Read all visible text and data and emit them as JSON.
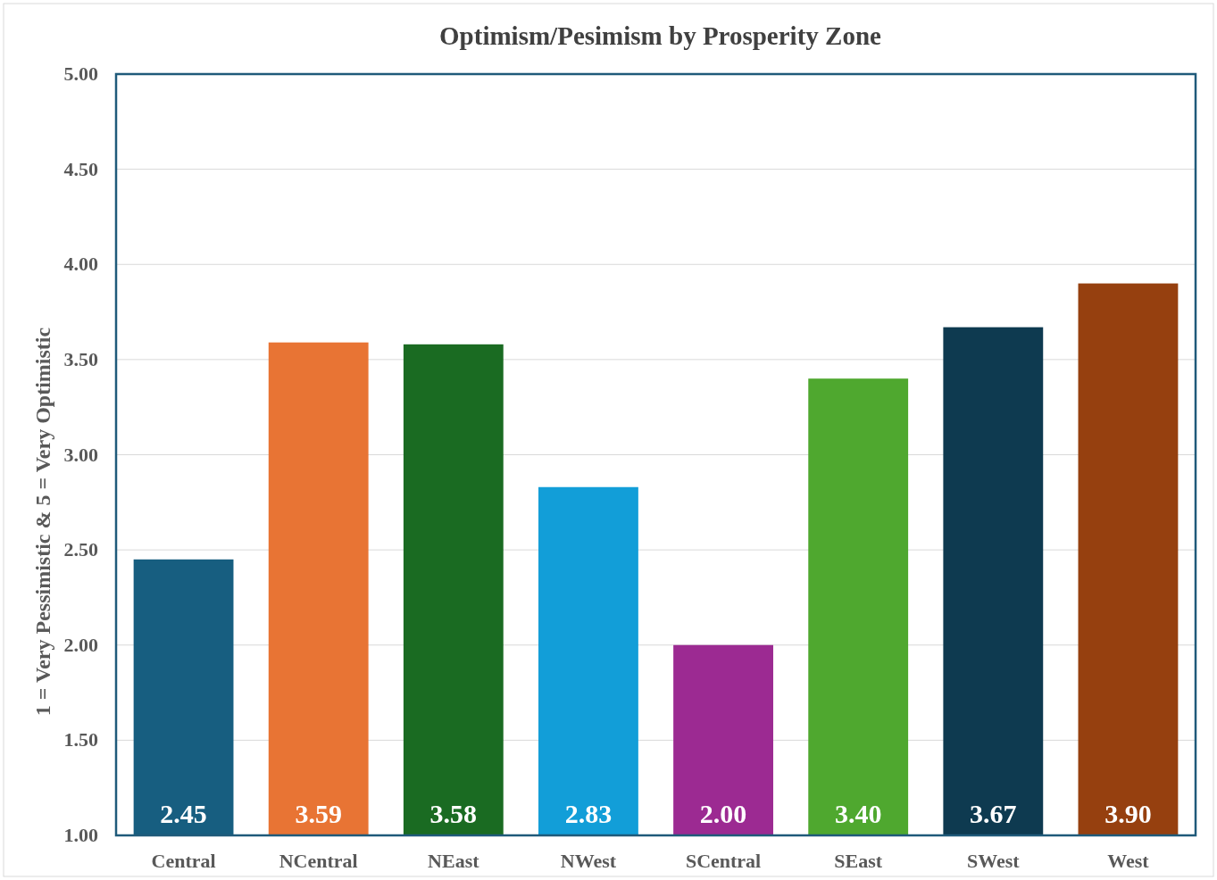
{
  "chart_data": {
    "type": "bar",
    "title": "Optimism/Pesimism by Prosperity Zone",
    "ylabel": "1 = Very Pessimistic & 5 = Very Optimistic",
    "categories": [
      "Central",
      "NCentral",
      "NEast",
      "NWest",
      "SCentral",
      "SEast",
      "SWest",
      "West"
    ],
    "values": [
      2.45,
      3.59,
      3.58,
      2.83,
      2.0,
      3.4,
      3.67,
      3.9
    ],
    "colors": [
      "#175e80",
      "#e87434",
      "#1a6b22",
      "#129ed8",
      "#9c2a92",
      "#4fa82f",
      "#0e3a50",
      "#96400f"
    ],
    "ylim": [
      1,
      5
    ],
    "yticks": [
      {
        "value": 1,
        "label": "1.00"
      },
      {
        "value": 1.5,
        "label": "1.50"
      },
      {
        "value": 2,
        "label": "2.00"
      },
      {
        "value": 2.5,
        "label": "2.50"
      },
      {
        "value": 3,
        "label": "3.00"
      },
      {
        "value": 3.5,
        "label": "3.50"
      },
      {
        "value": 4,
        "label": "4.00"
      },
      {
        "value": 4.5,
        "label": "4.50"
      },
      {
        "value": 5,
        "label": "5.00"
      }
    ],
    "value_labels": [
      "2.45",
      "3.59",
      "3.58",
      "2.83",
      "2.00",
      "3.40",
      "3.67",
      "3.90"
    ],
    "grid": "y"
  }
}
